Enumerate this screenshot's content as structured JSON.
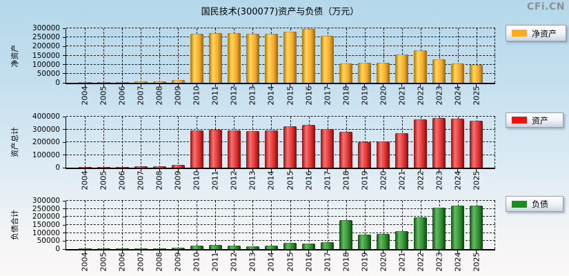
{
  "title": "国民技术(300077)资产与负债（万元）",
  "watermark": "CFi.CN",
  "chart_data": [
    {
      "type": "bar",
      "title": "净资产",
      "ylabel": "净资产",
      "xlabel": "",
      "legend": "净资产",
      "legend_position": "right",
      "grid": true,
      "color": "#FFA91E",
      "bar_gradient": [
        "#a9750b",
        "#ffd558",
        "#f3ab2e",
        "#96660a"
      ],
      "ylim": [
        0,
        300000
      ],
      "yticks": [
        0,
        50000,
        100000,
        150000,
        200000,
        250000,
        300000
      ],
      "categories": [
        "2004",
        "2005",
        "2006",
        "2007",
        "2008",
        "2009",
        "2010",
        "2011",
        "2012",
        "2013",
        "2014",
        "2015",
        "2016",
        "2017",
        "2018",
        "2019",
        "2020",
        "2021",
        "2022",
        "2023",
        "2024",
        "2025"
      ],
      "values": [
        2000,
        2500,
        2500,
        6000,
        6000,
        15000,
        270000,
        272000,
        272000,
        270000,
        270000,
        280000,
        297000,
        259000,
        108000,
        110000,
        110000,
        155000,
        177000,
        131000,
        108000,
        99000
      ]
    },
    {
      "type": "bar",
      "title": "资产总计",
      "ylabel": "资产总计",
      "xlabel": "",
      "legend": "资产",
      "legend_position": "right",
      "grid": true,
      "color": "#EE1111",
      "bar_gradient": [
        "#8f0e0e",
        "#f57272",
        "#e03030",
        "#7e0c0c"
      ],
      "ylim": [
        0,
        400000
      ],
      "yticks": [
        0,
        100000,
        200000,
        300000,
        400000
      ],
      "categories": [
        "2004",
        "2005",
        "2006",
        "2007",
        "2008",
        "2009",
        "2010",
        "2011",
        "2012",
        "2013",
        "2014",
        "2015",
        "2016",
        "2017",
        "2018",
        "2019",
        "2020",
        "2021",
        "2022",
        "2023",
        "2024",
        "2025"
      ],
      "values": [
        3500,
        4000,
        4500,
        9000,
        12000,
        24000,
        291000,
        298000,
        293000,
        288000,
        292000,
        325000,
        335000,
        303000,
        281000,
        198000,
        204000,
        272000,
        378000,
        387000,
        383000,
        365000
      ]
    },
    {
      "type": "bar",
      "title": "负债合计",
      "ylabel": "负债合计",
      "xlabel": "",
      "legend": "负债",
      "legend_position": "right",
      "grid": true,
      "color": "#1E8C1E",
      "bar_gradient": [
        "#124d12",
        "#63bb63",
        "#2f8f2f",
        "#0f420f"
      ],
      "ylim": [
        0,
        300000
      ],
      "yticks": [
        0,
        50000,
        100000,
        150000,
        200000,
        250000,
        300000
      ],
      "categories": [
        "2004",
        "2005",
        "2006",
        "2007",
        "2008",
        "2009",
        "2010",
        "2011",
        "2012",
        "2013",
        "2014",
        "2015",
        "2016",
        "2017",
        "2018",
        "2019",
        "2020",
        "2021",
        "2022",
        "2023",
        "2024",
        "2025"
      ],
      "values": [
        1500,
        1500,
        2000,
        3000,
        5000,
        9000,
        21000,
        26000,
        21000,
        18000,
        22000,
        38000,
        33000,
        41000,
        180000,
        90000,
        95000,
        110000,
        196000,
        259000,
        270000,
        268000
      ]
    }
  ]
}
